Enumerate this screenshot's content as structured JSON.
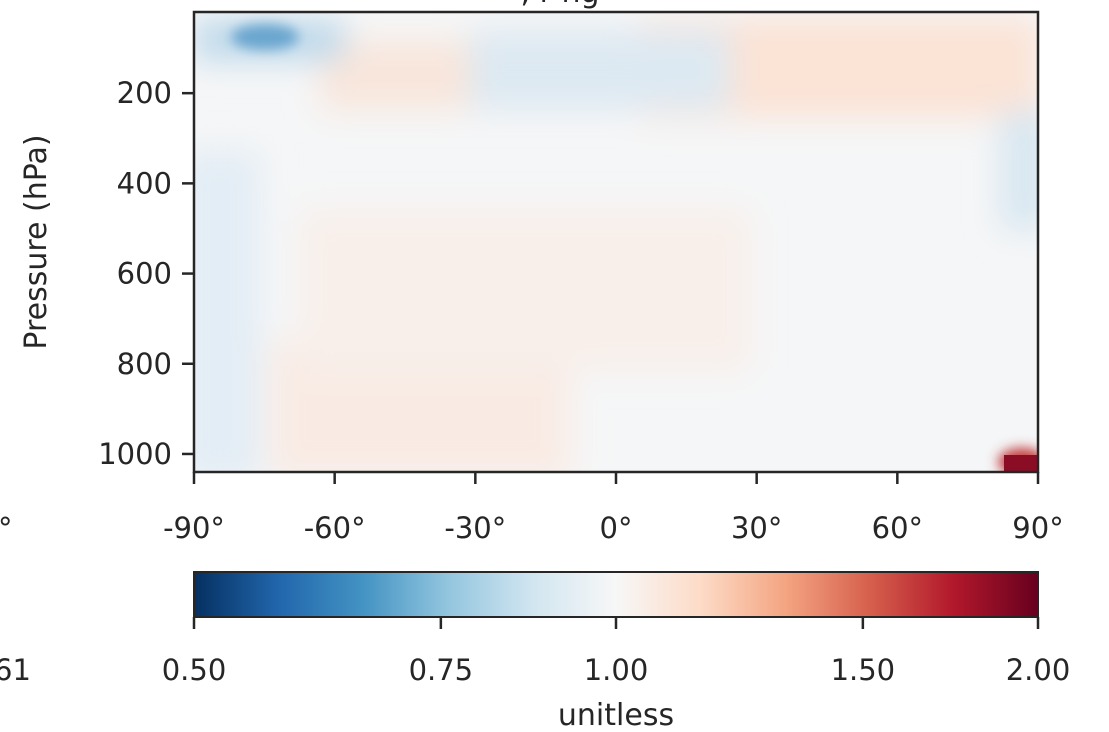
{
  "title_fragment": ", r   ng",
  "left_cut": {
    "xtick": "°",
    "cbar_tick": "61"
  },
  "chart_data": {
    "type": "heatmap",
    "ylabel": "Pressure (hPa)",
    "xlabel": "",
    "xlim": [
      -90,
      90
    ],
    "ylim": [
      1040,
      20
    ],
    "y_inverted": true,
    "x_ticks": [
      -90,
      -60,
      -30,
      0,
      30,
      60,
      90
    ],
    "x_tick_labels": [
      "-90°",
      "-60°",
      "-30°",
      "0°",
      "30°",
      "60°",
      "90°"
    ],
    "y_ticks": [
      200,
      400,
      600,
      800,
      1000
    ],
    "y_tick_labels": [
      "200",
      "400",
      "600",
      "800",
      "1000"
    ],
    "colormap": "RdBu_r",
    "features": [
      {
        "desc": "strong low (blue) near upper-left",
        "lat": -75,
        "p": 70,
        "value": 0.6
      },
      {
        "desc": "weak low band upper-middle",
        "lat": -15,
        "p": 90,
        "value": 0.88
      },
      {
        "desc": "weak high upper-right",
        "lat": 65,
        "p": 60,
        "value": 1.12
      },
      {
        "desc": "weak high upper, mid-south",
        "lat": -45,
        "p": 130,
        "value": 1.08
      },
      {
        "desc": "weak low right edge",
        "lat": 88,
        "p": 300,
        "value": 0.88
      },
      {
        "desc": "weak low left edge lower",
        "lat": -88,
        "p": 800,
        "value": 0.88
      },
      {
        "desc": "weak high lower, south midlatitudes",
        "lat": -50,
        "p": 900,
        "value": 1.07
      },
      {
        "desc": "strong high bottom-right corner",
        "lat": 88,
        "p": 1005,
        "value": 2.0
      }
    ],
    "colorbar": {
      "label": "unitless",
      "ticks": [
        0.5,
        0.75,
        1.0,
        1.5,
        2.0
      ],
      "tick_labels": [
        "0.50",
        "0.75",
        "1.00",
        "1.50",
        "2.00"
      ],
      "scale": "log2",
      "range": [
        0.5,
        2.0
      ],
      "orientation": "horizontal",
      "placement": "bottom"
    }
  }
}
